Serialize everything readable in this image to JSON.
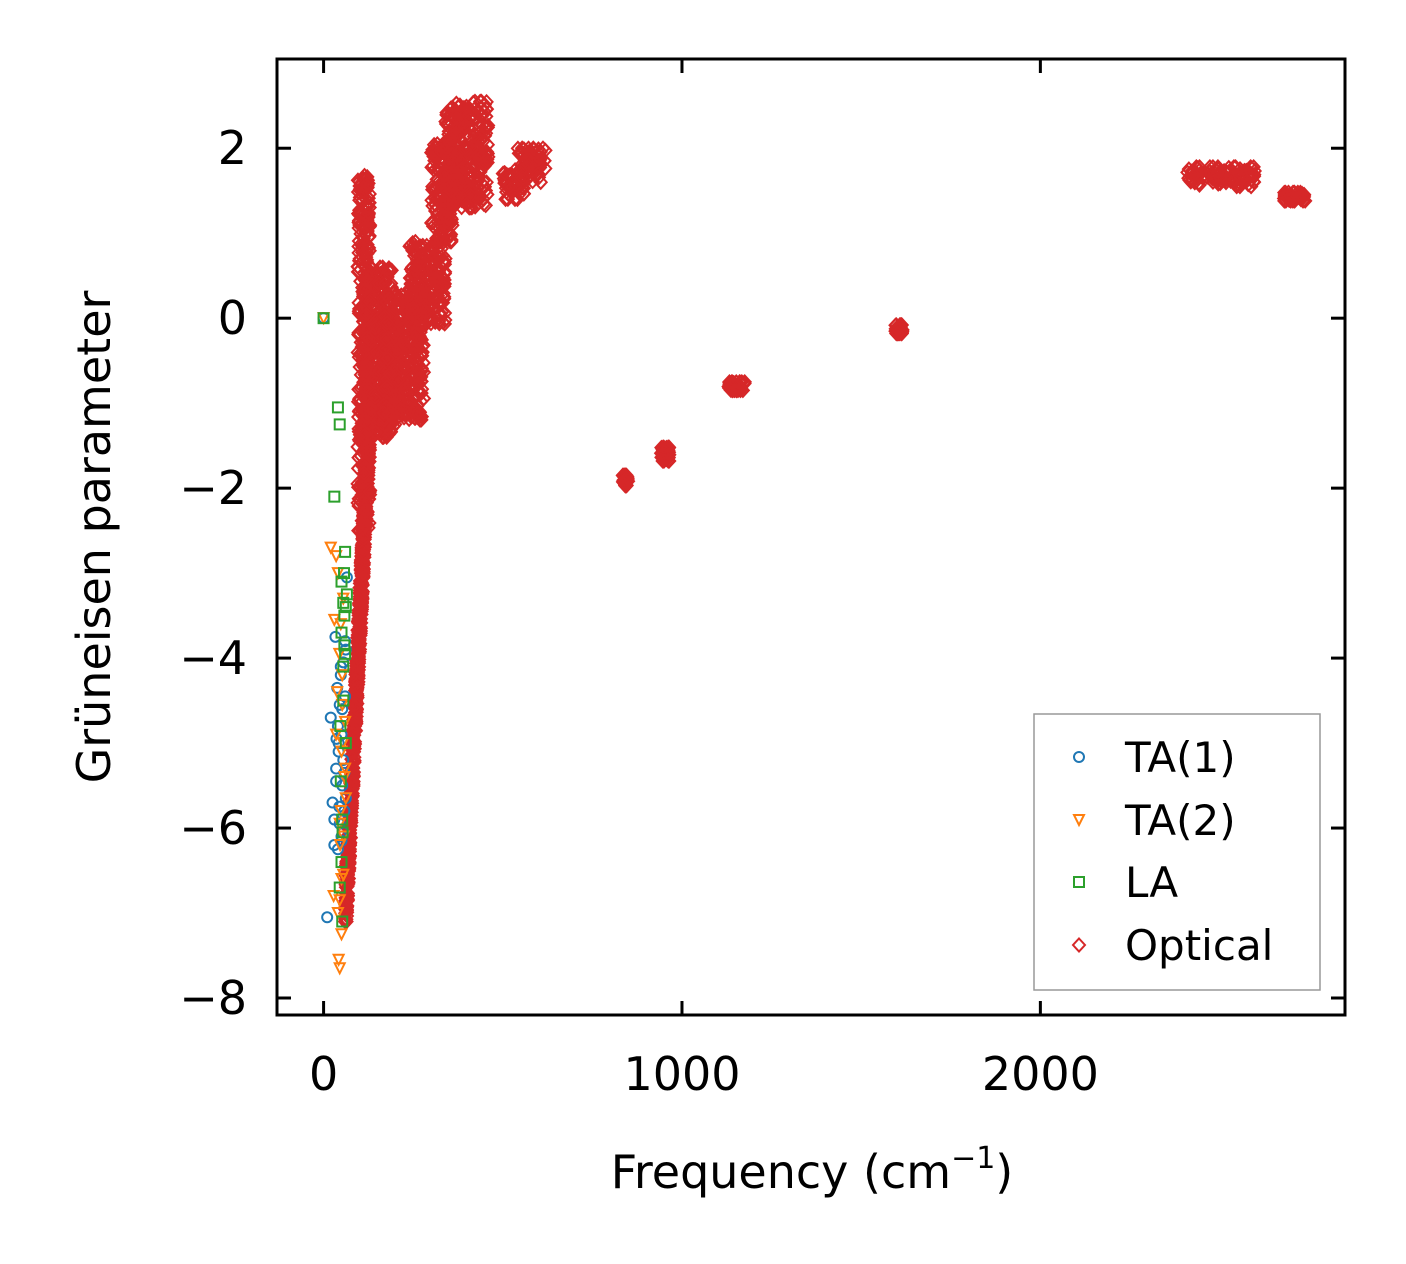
{
  "chart_data": {
    "type": "scatter",
    "title": "",
    "xlabel": "Frequency (cm",
    "xlabel_superscript": "−1",
    "xlabel_close": ")",
    "ylabel": "Grüneisen parameter",
    "xlim": [
      -130,
      2850
    ],
    "ylim": [
      -8.2,
      3.05
    ],
    "xticks": [
      0,
      1000,
      2000
    ],
    "xtick_labels": [
      "0",
      "1000",
      "2000"
    ],
    "yticks": [
      2,
      0,
      -2,
      -4,
      -6,
      -8
    ],
    "ytick_labels": [
      "2",
      "0",
      "−2",
      "−4",
      "−6",
      "−8"
    ],
    "grid": false,
    "legend_position": "bottom-right",
    "series": [
      {
        "name": "TA(1)",
        "marker": "circle",
        "color": "#1f77b4",
        "x": [
          0,
          10,
          20,
          25,
          30,
          33,
          35,
          38,
          40,
          42,
          45,
          45,
          48,
          50,
          50,
          52,
          55,
          55,
          58,
          60,
          60,
          62,
          65,
          35,
          40,
          48,
          55,
          30,
          42,
          52,
          58,
          36,
          44,
          50,
          62
        ],
        "y": [
          0,
          -7.05,
          -4.7,
          -5.7,
          -6.2,
          -3.75,
          -5.3,
          -4.35,
          -6.25,
          -5.0,
          -4.55,
          -5.95,
          -4.2,
          -4.9,
          -6.1,
          -5.5,
          -4.05,
          -5.2,
          -5.8,
          -3.8,
          -4.45,
          -5.65,
          -3.05,
          -5.45,
          -4.8,
          -4.1,
          -6.05,
          -5.9,
          -5.1,
          -4.6,
          -5.35,
          -4.95,
          -5.75,
          -6.15,
          -3.9
        ]
      },
      {
        "name": "TA(2)",
        "marker": "triangle-down",
        "color": "#ff7f0e",
        "x": [
          0,
          20,
          28,
          35,
          40,
          42,
          45,
          45,
          48,
          50,
          50,
          52,
          55,
          55,
          58,
          60,
          40,
          45,
          50,
          30,
          38,
          46,
          54,
          62,
          35,
          48,
          56,
          44,
          52,
          60
        ],
        "y": [
          0,
          -2.7,
          -6.8,
          -2.8,
          -3.0,
          -7.55,
          -7.65,
          -6.85,
          -3.6,
          -7.25,
          -5.1,
          -4.2,
          -6.55,
          -3.3,
          -5.4,
          -4.75,
          -7.0,
          -5.95,
          -6.6,
          -3.55,
          -4.4,
          -6.2,
          -5.0,
          -5.65,
          -4.9,
          -5.8,
          -6.1,
          -3.95,
          -4.55,
          -5.3
        ]
      },
      {
        "name": "LA",
        "marker": "square",
        "color": "#2ca02c",
        "x": [
          0,
          30,
          40,
          45,
          50,
          50,
          52,
          55,
          55,
          58,
          60,
          60,
          62,
          65,
          45,
          50,
          55,
          48,
          52,
          58,
          62,
          47,
          53,
          57
        ],
        "y": [
          0,
          -2.1,
          -1.05,
          -1.25,
          -3.1,
          -6.4,
          -7.1,
          -3.35,
          -4.5,
          -3.5,
          -2.75,
          -3.95,
          -5.0,
          -3.25,
          -6.7,
          -3.7,
          -4.1,
          -5.45,
          -5.9,
          -3.85,
          -3.4,
          -4.8,
          -6.05,
          -3.0
        ]
      },
      {
        "name": "Optical",
        "marker": "diamond",
        "color": "#d62728",
        "clusters": [
          {
            "x": [
              60,
              130
            ],
            "y": [
              -7.1,
              -1.0
            ]
          },
          {
            "x": [
              95,
              130
            ],
            "y": [
              -2.5,
              1.7
            ]
          },
          {
            "x": [
              110,
              200
            ],
            "y": [
              -1.4,
              0.6
            ]
          },
          {
            "x": [
              165,
              280
            ],
            "y": [
              -1.2,
              0.3
            ]
          },
          {
            "x": [
              240,
              340
            ],
            "y": [
              -0.1,
              0.9
            ]
          },
          {
            "x": [
              300,
              360
            ],
            "y": [
              0.9,
              2.05
            ]
          },
          {
            "x": [
              340,
              460
            ],
            "y": [
              1.3,
              2.55
            ]
          },
          {
            "x": [
              500,
              560
            ],
            "y": [
              1.4,
              1.75
            ]
          },
          {
            "x": [
              540,
              620
            ],
            "y": [
              1.6,
              2.0
            ]
          },
          {
            "x": [
              835,
              850
            ],
            "y": [
              -1.97,
              -1.85
            ]
          },
          {
            "x": [
              940,
              965
            ],
            "y": [
              -1.68,
              -1.52
            ]
          },
          {
            "x": [
              1130,
              1175
            ],
            "y": [
              -0.85,
              -0.75
            ]
          },
          {
            "x": [
              1595,
              1615
            ],
            "y": [
              -0.18,
              -0.08
            ]
          },
          {
            "x": [
              2410,
              2600
            ],
            "y": [
              1.55,
              1.78
            ]
          },
          {
            "x": [
              2680,
              2740
            ],
            "y": [
              1.38,
              1.48
            ]
          }
        ]
      }
    ]
  }
}
